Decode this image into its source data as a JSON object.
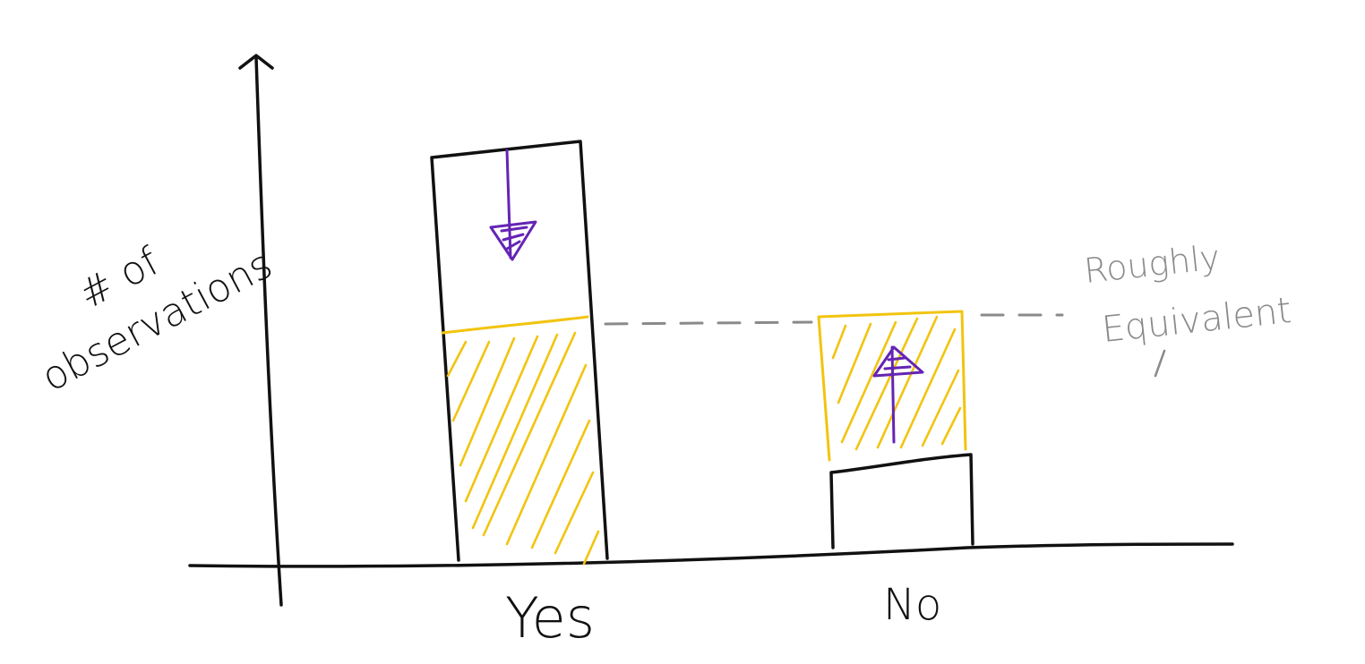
{
  "y_axis_label_line1": "# of",
  "y_axis_label_line2": "observations",
  "categories": [
    "Yes",
    "No"
  ],
  "annotation_line1": "Roughly",
  "annotation_line2": "Equivalent",
  "colors": {
    "ink": "#111111",
    "yellow": "#f2c40f",
    "purple": "#6424b4",
    "gray": "#8a8a8a"
  }
}
